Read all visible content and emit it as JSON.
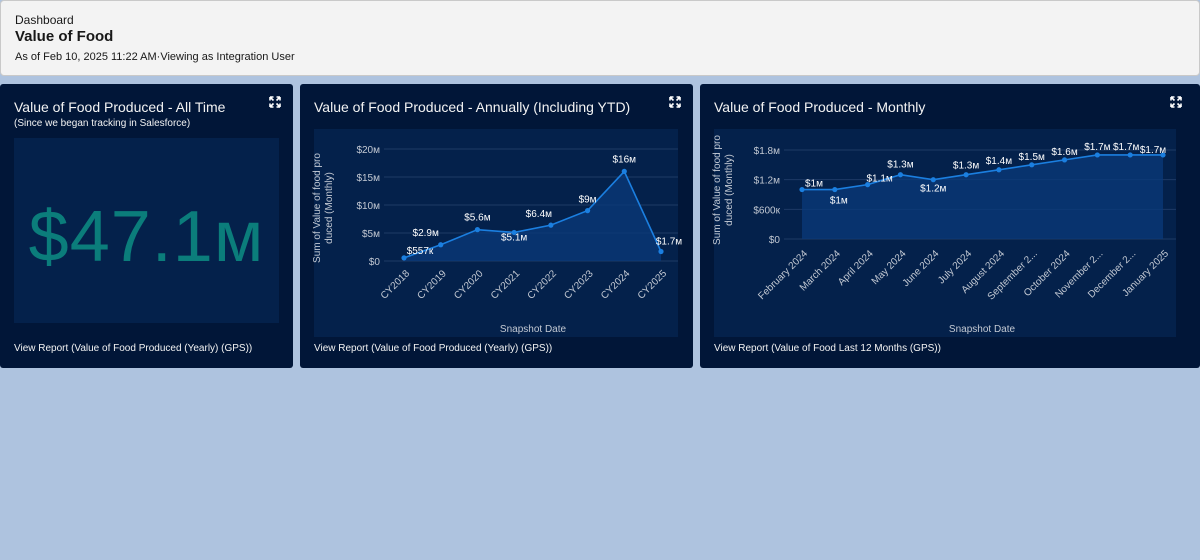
{
  "header": {
    "breadcrumb": "Dashboard",
    "title": "Value of Food",
    "subtitle": "As of Feb 10, 2025 11:22 AM·Viewing as Integration User"
  },
  "colors": {
    "card_bg": "#011638",
    "line": "#1b7fe0",
    "metric": "#0b7d7b",
    "page_bg": "#aec3df"
  },
  "cards": [
    {
      "title": "Value of Food Produced - All Time",
      "subtitle": "(Since we began tracking in Salesforce)",
      "metric": "$47.1м",
      "link": "View Report (Value of Food Produced (Yearly) (GPS))",
      "icon": "expand-icon"
    },
    {
      "title": "Value of Food Produced - Annually (Including YTD)",
      "link": "View Report (Value of Food Produced (Yearly) (GPS))",
      "icon": "expand-icon"
    },
    {
      "title": "Value of Food Produced - Monthly",
      "link": "View Report (Value of Food Last 12 Months (GPS))",
      "icon": "expand-icon"
    }
  ],
  "chart_data": [
    {
      "type": "area",
      "title": "Value of Food Produced - Annually (Including YTD)",
      "xlabel": "Snapshot Date",
      "ylabel": "Sum of Value of food produced (Monthly)",
      "categories": [
        "CY2018",
        "CY2019",
        "CY2020",
        "CY2021",
        "CY2022",
        "CY2023",
        "CY2024",
        "CY2025"
      ],
      "values": [
        0.557,
        2.9,
        5.6,
        5.1,
        6.4,
        9,
        16,
        1.7
      ],
      "data_labels": [
        "$557к",
        "$2.9м",
        "$5.6м",
        "$5.1м",
        "$6.4м",
        "$9м",
        "$16м",
        "$1.7м"
      ],
      "yticks": [
        "$0",
        "$5м",
        "$10м",
        "$15м",
        "$20м"
      ],
      "ytick_values": [
        0,
        5,
        10,
        15,
        20
      ],
      "ylim": [
        0,
        20
      ],
      "units": "millions USD"
    },
    {
      "type": "area",
      "title": "Value of Food Produced - Monthly",
      "xlabel": "Snapshot Date",
      "ylabel": "Sum of Value of food produced (Monthly)",
      "categories": [
        "February 2024",
        "March 2024",
        "April 2024",
        "May 2024",
        "June 2024",
        "July 2024",
        "August 2024",
        "September 2...",
        "October 2024",
        "November 2...",
        "December 2...",
        "January 2025"
      ],
      "values": [
        1.0,
        1.0,
        1.1,
        1.3,
        1.2,
        1.3,
        1.4,
        1.5,
        1.6,
        1.7,
        1.7,
        1.7
      ],
      "data_labels": [
        "$1м",
        "$1м",
        "$1.1м",
        "$1.3м",
        "$1.2м",
        "$1.3м",
        "$1.4м",
        "$1.5м",
        "$1.6м",
        "$1.7м",
        "$1.7м",
        "$1.7м"
      ],
      "yticks": [
        "$0",
        "$600к",
        "$1.2м",
        "$1.8м"
      ],
      "ytick_values": [
        0,
        0.6,
        1.2,
        1.8
      ],
      "ylim": [
        0,
        1.8
      ],
      "units": "millions USD"
    }
  ]
}
